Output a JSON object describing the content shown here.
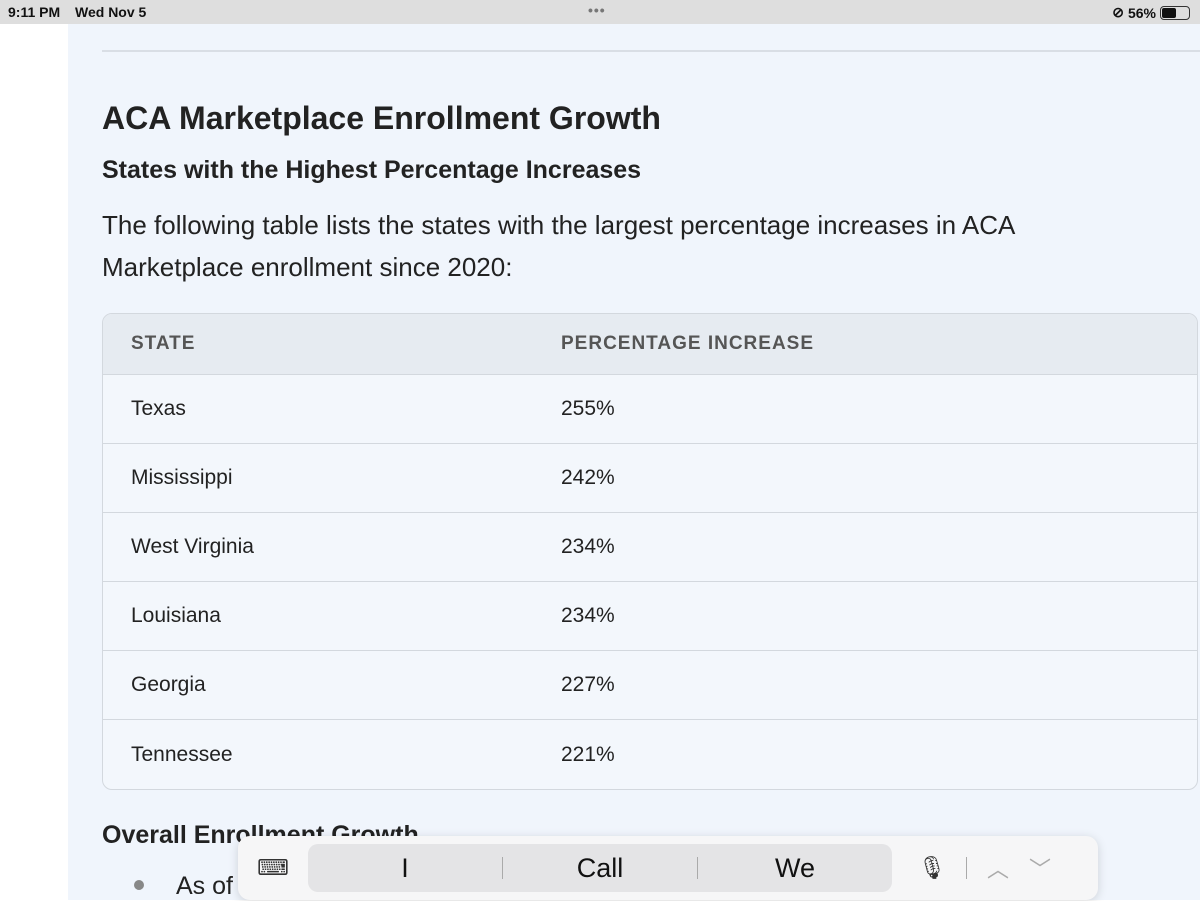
{
  "status": {
    "time": "9:11 PM",
    "date": "Wed Nov 5",
    "battery": "56%",
    "battery_level": 0.56
  },
  "page": {
    "title": "ACA Marketplace Enrollment Growth",
    "subtitle": "States with the Highest Percentage Increases",
    "intro": "The following table lists the states with the largest percentage increases in ACA Marketplace enrollment since 2020:",
    "table": {
      "headers": [
        "STATE",
        "PERCENTAGE INCREASE"
      ],
      "rows": [
        [
          "Texas",
          "255%"
        ],
        [
          "Mississippi",
          "242%"
        ],
        [
          "West Virginia",
          "234%"
        ],
        [
          "Louisiana",
          "234%"
        ],
        [
          "Georgia",
          "227%"
        ],
        [
          "Tennessee",
          "221%"
        ]
      ]
    },
    "section2": "Overall Enrollment Growth",
    "bullet1": "As of"
  },
  "keyboard": {
    "suggestions": [
      "I",
      "Call",
      "We"
    ]
  }
}
